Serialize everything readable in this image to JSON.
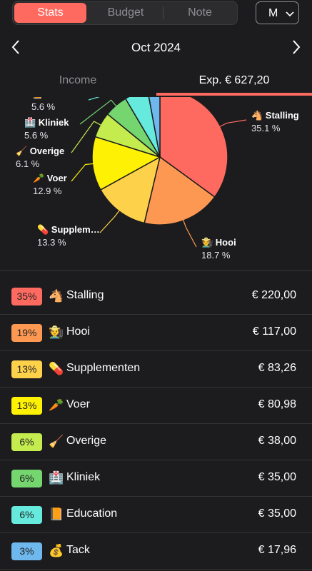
{
  "header": {
    "tabs": [
      "Stats",
      "Budget",
      "Note"
    ],
    "active_tab": "Stats",
    "period": "M"
  },
  "month": {
    "label": "Oct 2024"
  },
  "type_tabs": {
    "income": "Income",
    "expense": "Exp. € 627,20"
  },
  "colors": {
    "accent": "#fe6a5f",
    "background": "#1c1c1e"
  },
  "chart_data": {
    "type": "pie",
    "slices": [
      {
        "label": "Stalling",
        "icon": "🐴",
        "percent": 35.1,
        "percent_label": "35.1 %",
        "color": "#fe6a5f"
      },
      {
        "label": "Hooi",
        "icon": "🧑‍🌾",
        "percent": 18.7,
        "percent_label": "18.7 %",
        "color": "#fd9852"
      },
      {
        "label": "Supplem…",
        "icon": "💊",
        "percent": 13.3,
        "percent_label": "13.3 %",
        "color": "#fed14a"
      },
      {
        "label": "Voer",
        "icon": "🥕",
        "percent": 12.9,
        "percent_label": "12.9 %",
        "color": "#fef104"
      },
      {
        "label": "Overige",
        "icon": "🧹",
        "percent": 6.1,
        "percent_label": "6.1 %",
        "color": "#c5ec4f"
      },
      {
        "label": "Kliniek",
        "icon": "🏥",
        "percent": 5.6,
        "percent_label": "5.6 %",
        "color": "#75d56f"
      },
      {
        "label": "Educati…",
        "icon": "📙",
        "percent": 5.6,
        "percent_label": "5.6 %",
        "color": "#66eadd"
      },
      {
        "label": "Tack",
        "icon": "💰",
        "percent": 2.9,
        "percent_label": "",
        "color": "#6fb8ed"
      }
    ]
  },
  "categories": [
    {
      "percent": "35%",
      "icon": "🐴",
      "name": "Stalling",
      "amount": "€ 220,00",
      "color": "#fe6a5f"
    },
    {
      "percent": "19%",
      "icon": "🧑‍🌾",
      "name": "Hooi",
      "amount": "€ 117,00",
      "color": "#fd9852"
    },
    {
      "percent": "13%",
      "icon": "💊",
      "name": "Supplementen",
      "amount": "€ 83,26",
      "color": "#fed14a"
    },
    {
      "percent": "13%",
      "icon": "🥕",
      "name": "Voer",
      "amount": "€ 80,98",
      "color": "#fef104"
    },
    {
      "percent": "6%",
      "icon": "🧹",
      "name": "Overige",
      "amount": "€ 38,00",
      "color": "#c5ec4f"
    },
    {
      "percent": "6%",
      "icon": "🏥",
      "name": "Kliniek",
      "amount": "€ 35,00",
      "color": "#75d56f"
    },
    {
      "percent": "6%",
      "icon": "📙",
      "name": "Education",
      "amount": "€ 35,00",
      "color": "#66eadd"
    },
    {
      "percent": "3%",
      "icon": "💰",
      "name": "Tack",
      "amount": "€ 17,96",
      "color": "#6fb8ed"
    }
  ]
}
